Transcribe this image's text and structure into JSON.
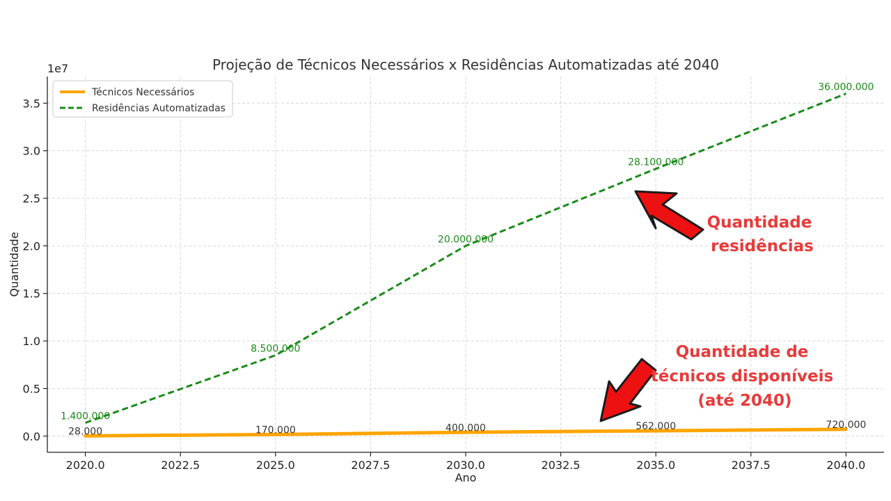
{
  "chart_data": {
    "type": "line",
    "title": "Projeção de Técnicos Necessários x Residências Automatizadas até 2040",
    "xlabel": "Ano",
    "ylabel": "Quantidade",
    "y_offset_text": "1e7",
    "x": [
      2020,
      2025,
      2030,
      2035,
      2040
    ],
    "x_ticks": [
      "2020.0",
      "2022.5",
      "2025.0",
      "2027.5",
      "2030.0",
      "2032.5",
      "2035.0",
      "2037.5",
      "2040.0"
    ],
    "y_ticks": [
      "0.0",
      "0.5",
      "1.0",
      "1.5",
      "2.0",
      "2.5",
      "3.0",
      "3.5"
    ],
    "xlim": [
      2019,
      2041
    ],
    "ylim": [
      -1700000,
      37800000
    ],
    "grid": true,
    "legend_position": "top-left",
    "series": [
      {
        "name": "Técnicos Necessários",
        "values": [
          28000,
          170000,
          400000,
          562000,
          720000
        ],
        "labels": [
          "28.000",
          "170.000",
          "400.000",
          "562.000",
          "720.000"
        ],
        "color": "#ffa500",
        "line_style": "solid"
      },
      {
        "name": "Residências Automatizadas",
        "values": [
          1400000,
          8500000,
          20000000,
          28100000,
          36000000
        ],
        "labels": [
          "1.400.000",
          "8.500.000",
          "20.000.000",
          "28.100.000",
          "36.000.000"
        ],
        "color": "#1a8a1a",
        "line_style": "dashed"
      }
    ],
    "annotations": [
      {
        "lines": [
          "Quantidade",
          "residências"
        ],
        "color": "#e83a3a"
      },
      {
        "lines": [
          "Quantidade de",
          "técnicos disponíveis",
          "(até 2040)"
        ],
        "color": "#e83a3a"
      }
    ]
  }
}
